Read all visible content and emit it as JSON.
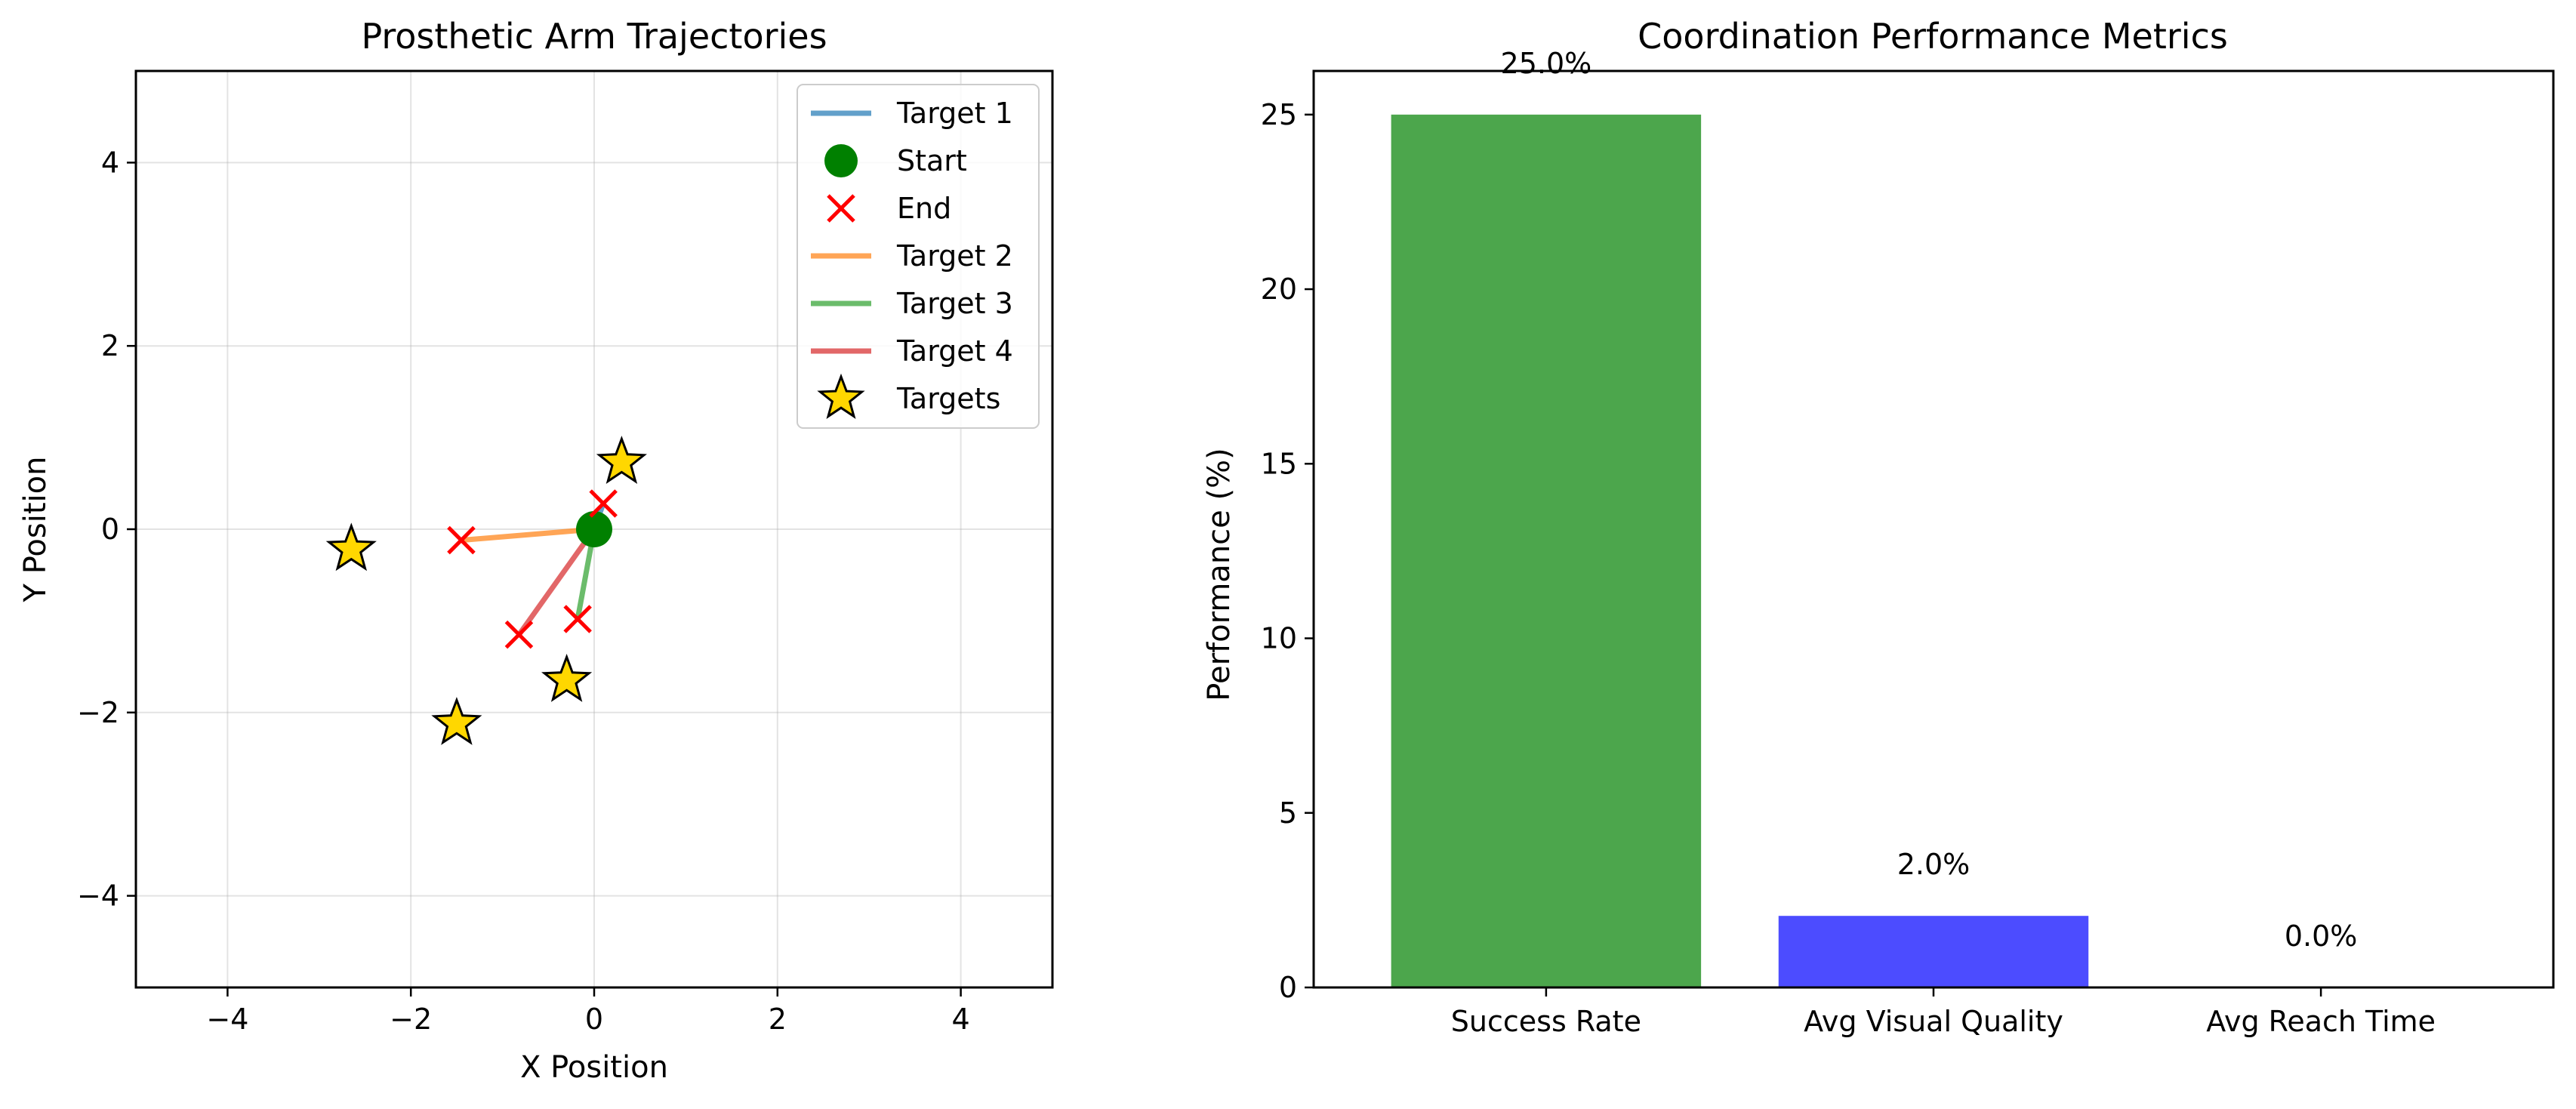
{
  "chart_data": [
    {
      "type": "line",
      "title": "Prosthetic Arm Trajectories",
      "xlabel": "X Position",
      "ylabel": "Y Position",
      "xlim": [
        -5,
        5
      ],
      "ylim": [
        -5,
        5
      ],
      "xticks": [
        -4,
        -2,
        0,
        2,
        4
      ],
      "yticks": [
        -4,
        -2,
        0,
        2,
        4
      ],
      "grid": true,
      "legend_position": "top-right",
      "series": [
        {
          "name": "Target 1",
          "color": "#1f77b4",
          "points": [
            [
              0,
              0
            ],
            [
              0.1,
              0.28
            ]
          ]
        },
        {
          "name": "Target 2",
          "color": "#ff7f0e",
          "points": [
            [
              0,
              0
            ],
            [
              -1.45,
              -0.12
            ]
          ]
        },
        {
          "name": "Target 3",
          "color": "#2ca02c",
          "points": [
            [
              0,
              0
            ],
            [
              -0.18,
              -0.98
            ]
          ]
        },
        {
          "name": "Target 4",
          "color": "#d62728",
          "points": [
            [
              0,
              0
            ],
            [
              -0.82,
              -1.15
            ]
          ]
        }
      ],
      "start": {
        "name": "Start",
        "color": "#008000",
        "point": [
          0,
          0
        ]
      },
      "ends": {
        "name": "End",
        "color": "#ff0000",
        "points": [
          [
            0.1,
            0.28
          ],
          [
            -1.45,
            -0.12
          ],
          [
            -0.18,
            -0.98
          ],
          [
            -0.82,
            -1.15
          ]
        ]
      },
      "targets": {
        "name": "Targets",
        "color": "#ffd700",
        "points": [
          [
            0.3,
            0.73
          ],
          [
            -2.65,
            -0.22
          ],
          [
            -0.3,
            -1.65
          ],
          [
            -1.5,
            -2.12
          ]
        ]
      },
      "legend_order": [
        "Target 1",
        "Start",
        "End",
        "Target 2",
        "Target 3",
        "Target 4",
        "Targets"
      ]
    },
    {
      "type": "bar",
      "title": "Coordination Performance Metrics",
      "xlabel": "",
      "ylabel": "Performance (%)",
      "categories": [
        "Success Rate",
        "Avg Visual Quality",
        "Avg Reach Time"
      ],
      "values": [
        25.0,
        2.05,
        0.0
      ],
      "value_labels": [
        "25.0%",
        "2.0%",
        "0.0%"
      ],
      "colors": [
        "#4ca64c",
        "#4c4cff",
        "#4c4cff"
      ],
      "ylim": [
        0,
        26.25
      ],
      "yticks": [
        0,
        5,
        10,
        15,
        20,
        25
      ],
      "grid": false
    }
  ]
}
